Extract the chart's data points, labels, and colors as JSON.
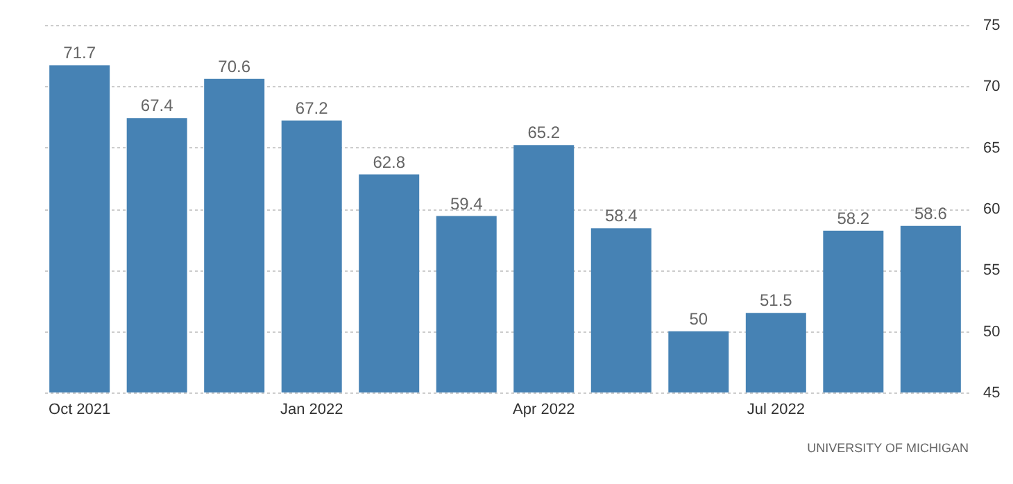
{
  "chart_data": {
    "type": "bar",
    "categories": [
      "Oct 2021",
      null,
      null,
      "Jan 2022",
      null,
      null,
      "Apr 2022",
      null,
      null,
      "Jul 2022",
      null,
      null
    ],
    "values": [
      71.7,
      67.4,
      70.6,
      67.2,
      62.8,
      59.4,
      65.2,
      58.4,
      50,
      51.5,
      58.2,
      58.6
    ],
    "color": "#4682b4",
    "ylim": [
      45,
      75
    ],
    "yticks": [
      45,
      50,
      55,
      60,
      65,
      70,
      75
    ],
    "grid": "y",
    "data_labels": true,
    "annotations": [
      "UNIVERSITY OF MICHIGAN"
    ]
  }
}
